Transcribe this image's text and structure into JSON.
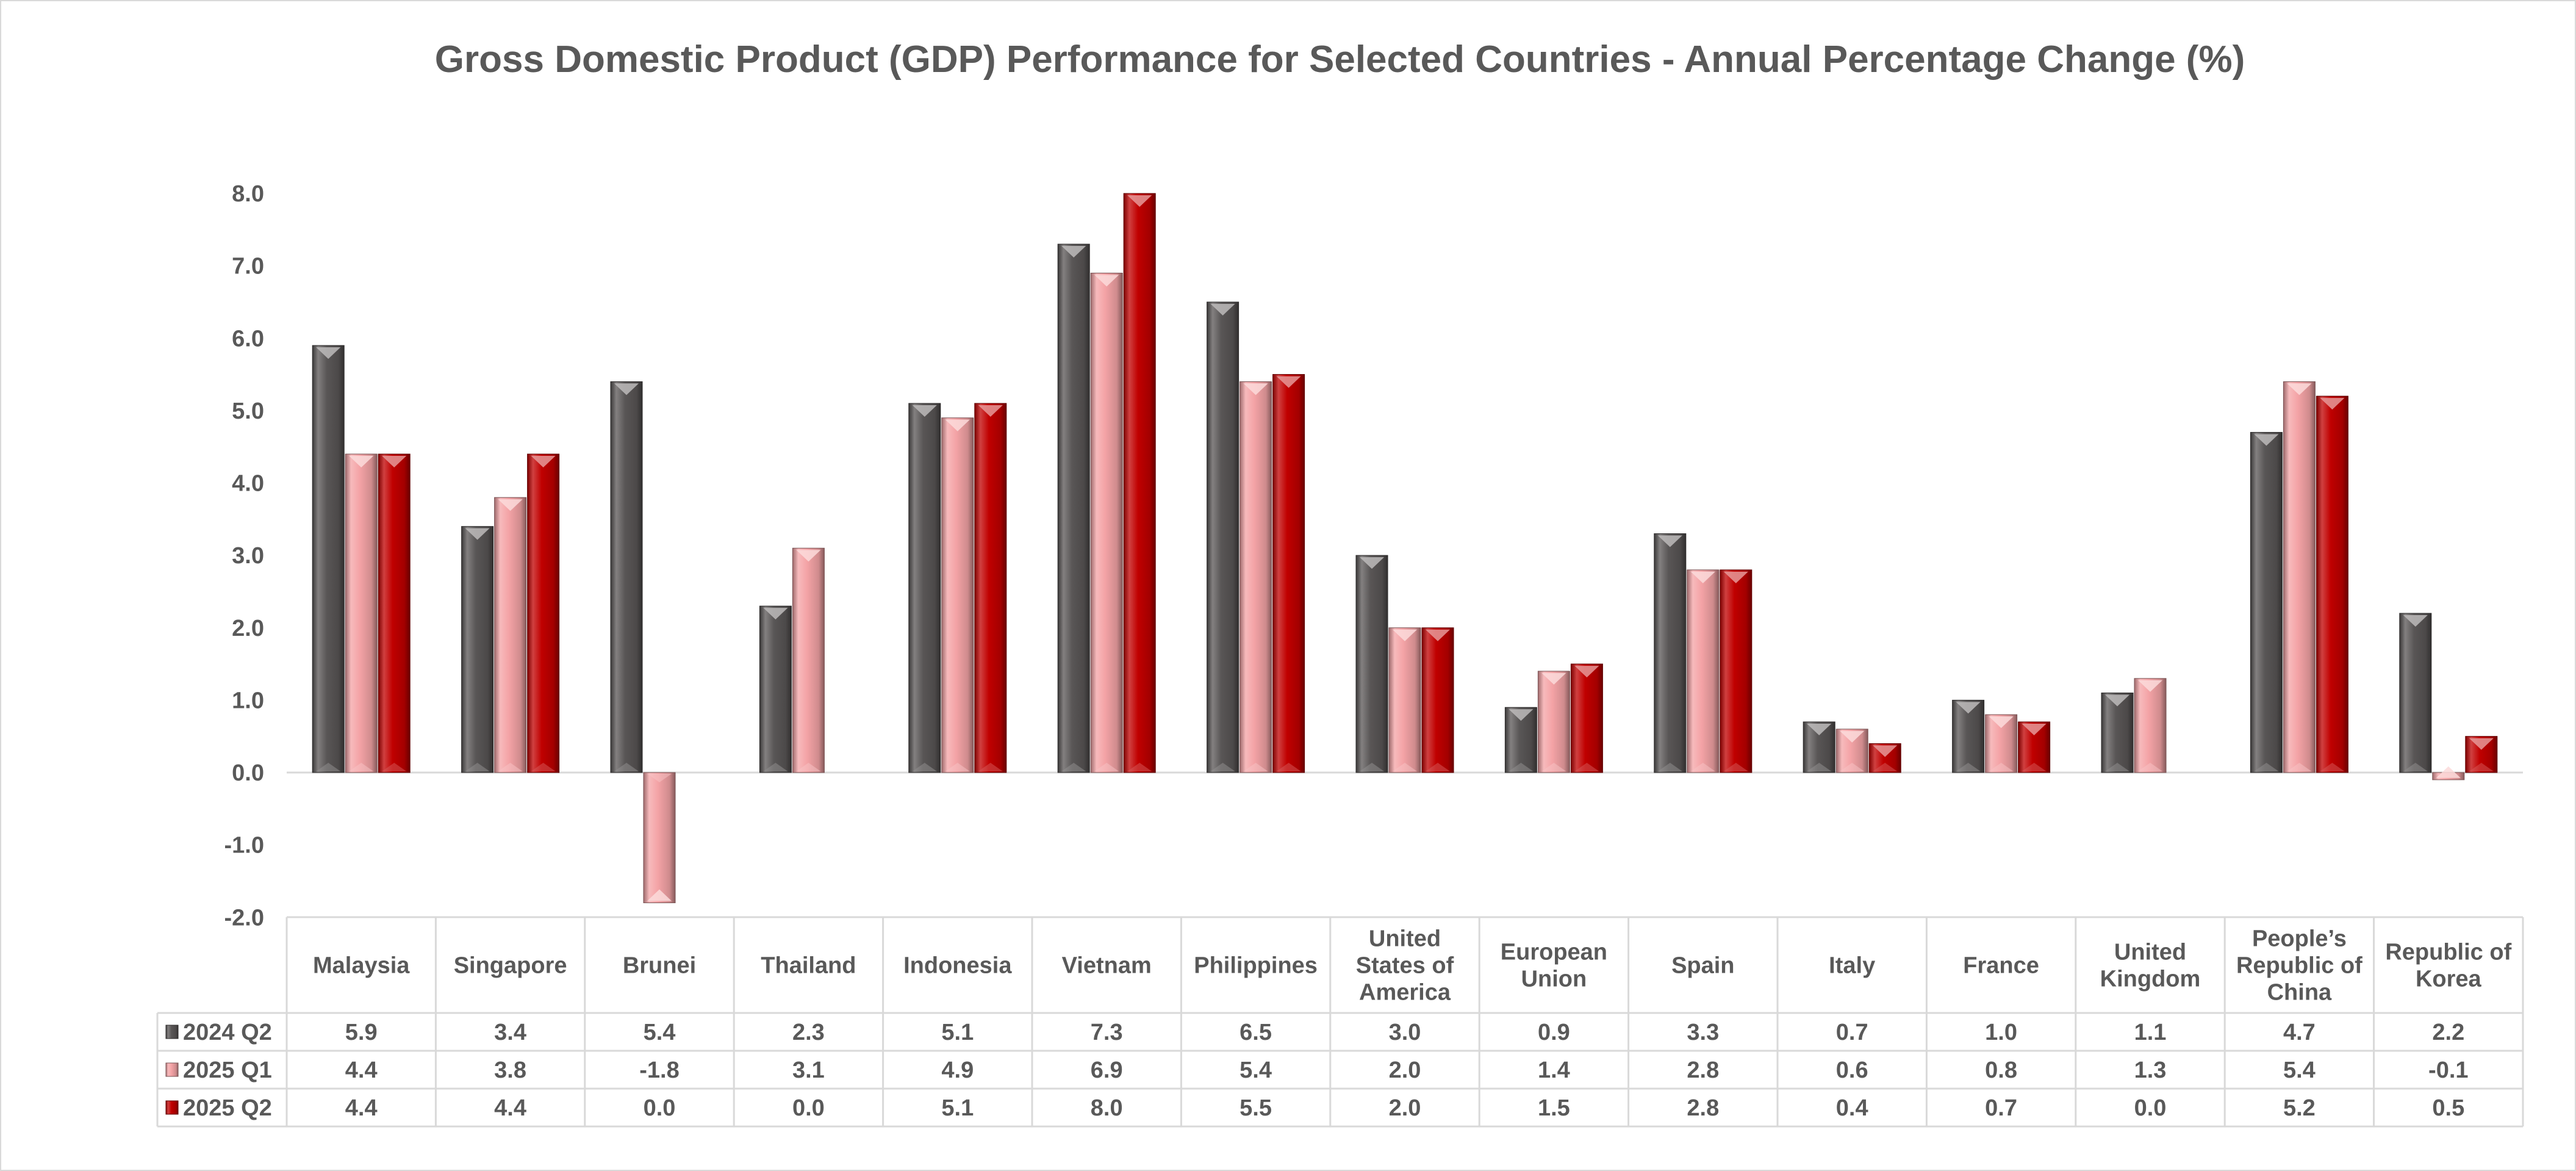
{
  "chart_data": {
    "type": "bar",
    "title": "Gross Domestic Product (GDP) Performance for Selected Countries - Annual Percentage Change (%)",
    "xlabel": "",
    "ylabel": "",
    "ylim": [
      -2.0,
      8.0
    ],
    "yticks": [
      "8.0",
      "7.0",
      "6.0",
      "5.0",
      "4.0",
      "3.0",
      "2.0",
      "1.0",
      "0.0",
      "-1.0",
      "-2.0"
    ],
    "categories": [
      "Malaysia",
      "Singapore",
      "Brunei",
      "Thailand",
      "Indonesia",
      "Vietnam",
      "Philippines",
      "United States of America",
      "European Union",
      "Spain",
      "Italy",
      "France",
      "United Kingdom",
      "People’s Republic of China",
      "Republic of Korea"
    ],
    "series": [
      {
        "name": "2024 Q2",
        "color": "#595656",
        "values": [
          5.9,
          3.4,
          5.4,
          2.3,
          5.1,
          7.3,
          6.5,
          3.0,
          0.9,
          3.3,
          0.7,
          1.0,
          1.1,
          4.7,
          2.2
        ],
        "labels": [
          "5.9",
          "3.4",
          "5.4",
          "2.3",
          "5.1",
          "7.3",
          "6.5",
          "3.0",
          "0.9",
          "3.3",
          "0.7",
          "1.0",
          "1.1",
          "4.7",
          "2.2"
        ]
      },
      {
        "name": "2025 Q1",
        "color": "#f4a3a6",
        "values": [
          4.4,
          3.8,
          -1.8,
          3.1,
          4.9,
          6.9,
          5.4,
          2.0,
          1.4,
          2.8,
          0.6,
          0.8,
          1.3,
          5.4,
          -0.1
        ],
        "labels": [
          "4.4",
          "3.8",
          "-1.8",
          "3.1",
          "4.9",
          "6.9",
          "5.4",
          "2.0",
          "1.4",
          "2.8",
          "0.6",
          "0.8",
          "1.3",
          "5.4",
          "-0.1"
        ]
      },
      {
        "name": "2025 Q2",
        "color": "#c00000",
        "values": [
          4.4,
          4.4,
          0.0,
          0.0,
          5.1,
          8.0,
          5.5,
          2.0,
          1.5,
          2.8,
          0.4,
          0.7,
          0.0,
          5.2,
          0.5
        ],
        "labels": [
          "4.4",
          "4.4",
          "0.0",
          "0.0",
          "5.1",
          "8.0",
          "5.5",
          "2.0",
          "1.5",
          "2.8",
          "0.4",
          "0.7",
          "0.0",
          "5.2",
          "0.5"
        ]
      }
    ],
    "legend": "data-table-left",
    "grid": false
  }
}
